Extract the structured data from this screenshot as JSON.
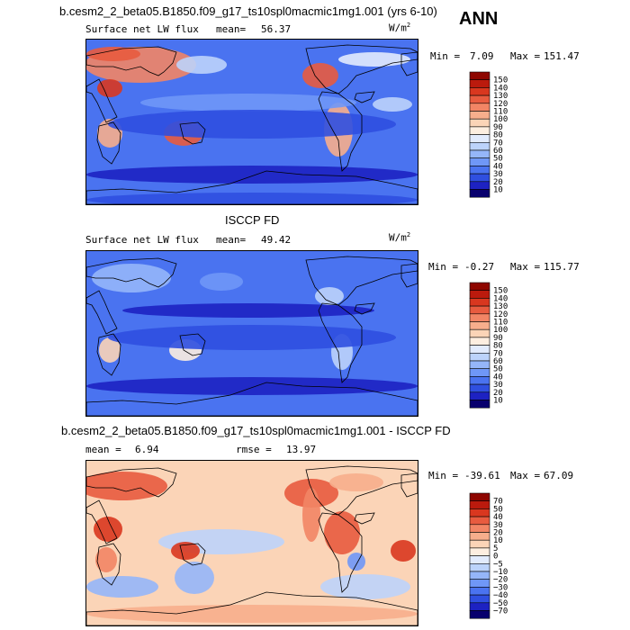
{
  "season": "ANN",
  "colors": {
    "abs_scale": [
      "#08006e",
      "#1d22c2",
      "#2f4fe0",
      "#4a73f0",
      "#6f97f7",
      "#95b6f9",
      "#bcd3fb",
      "#e2ebfd",
      "#fdeee0",
      "#fbd4b7",
      "#f7ae8c",
      "#f28565",
      "#e85b3f",
      "#d9371f",
      "#bb1a0d",
      "#8e0600"
    ],
    "diff_scale": [
      "#08006e",
      "#1d22c2",
      "#2f4fe0",
      "#4a73f0",
      "#6f97f7",
      "#95b6f9",
      "#bcd3fb",
      "#e2ebfd",
      "#fdeee0",
      "#fbd4b7",
      "#f7ae8c",
      "#f28565",
      "#e85b3f",
      "#d9371f",
      "#bb1a0d",
      "#8e0600"
    ]
  },
  "chart_data": [
    {
      "type": "heatmap",
      "title": "b.cesm2_2_beta05.B1850.f09_g17_ts10spl0macmic1mg1.001 (yrs 6-10)",
      "variable": "Surface net LW flux",
      "mean_label": "mean=",
      "mean": "56.37",
      "units_base": "W/m",
      "units_exp": "2",
      "min_label": "Min =",
      "min": "7.09",
      "max_label": "Max =",
      "max": "151.47",
      "colorbar_levels": [
        "150",
        "140",
        "130",
        "120",
        "110",
        "100",
        "90",
        "80",
        "70",
        "60",
        "50",
        "40",
        "30",
        "20",
        "10"
      ]
    },
    {
      "type": "heatmap",
      "title": "ISCCP FD",
      "variable": "Surface net LW flux",
      "mean_label": "mean=",
      "mean": "49.42",
      "units_base": "W/m",
      "units_exp": "2",
      "min_label": "Min =",
      "min": "-0.27",
      "max_label": "Max =",
      "max": "115.77",
      "colorbar_levels": [
        "150",
        "140",
        "130",
        "120",
        "110",
        "100",
        "90",
        "80",
        "70",
        "60",
        "50",
        "40",
        "30",
        "20",
        "10"
      ]
    },
    {
      "type": "heatmap",
      "title": "b.cesm2_2_beta05.B1850.f09_g17_ts10spl0macmic1mg1.001 - ISCCP FD",
      "mean_label": "mean =",
      "mean": "6.94",
      "rmse_label": "rmse =",
      "rmse": "13.97",
      "min_label": "Min =",
      "min": "-39.61",
      "max_label": "Max =",
      "max": "67.09",
      "colorbar_levels": [
        "70",
        "50",
        "40",
        "30",
        "20",
        "10",
        "5",
        "0",
        "−5",
        "−10",
        "−20",
        "−30",
        "−40",
        "−50",
        "−70"
      ]
    }
  ]
}
